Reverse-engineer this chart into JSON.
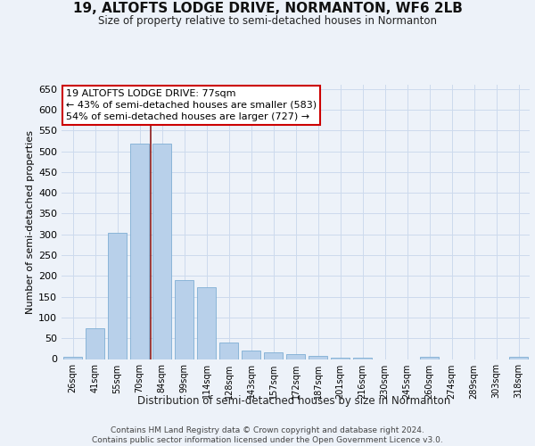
{
  "title1": "19, ALTOFTS LODGE DRIVE, NORMANTON, WF6 2LB",
  "title2": "Size of property relative to semi-detached houses in Normanton",
  "xlabel": "Distribution of semi-detached houses by size in Normanton",
  "ylabel": "Number of semi-detached properties",
  "categories": [
    "26sqm",
    "41sqm",
    "55sqm",
    "70sqm",
    "84sqm",
    "99sqm",
    "114sqm",
    "128sqm",
    "143sqm",
    "157sqm",
    "172sqm",
    "187sqm",
    "201sqm",
    "216sqm",
    "230sqm",
    "245sqm",
    "260sqm",
    "274sqm",
    "289sqm",
    "303sqm",
    "318sqm"
  ],
  "values": [
    5,
    74,
    303,
    519,
    519,
    190,
    172,
    40,
    20,
    17,
    12,
    8,
    4,
    4,
    0,
    0,
    5,
    0,
    0,
    0,
    5
  ],
  "bar_color": "#b8d0ea",
  "bar_edge_color": "#7faed4",
  "grid_color": "#ccdaed",
  "vline_x": 3.5,
  "vline_color": "#8b1a1a",
  "annotation_text": "19 ALTOFTS LODGE DRIVE: 77sqm\n← 43% of semi-detached houses are smaller (583)\n54% of semi-detached houses are larger (727) →",
  "annotation_box_color": "#ffffff",
  "annotation_box_edge": "#cc0000",
  "ylim": [
    0,
    660
  ],
  "yticks": [
    0,
    50,
    100,
    150,
    200,
    250,
    300,
    350,
    400,
    450,
    500,
    550,
    600,
    650
  ],
  "footer": "Contains HM Land Registry data © Crown copyright and database right 2024.\nContains public sector information licensed under the Open Government Licence v3.0.",
  "bg_color": "#edf2f9",
  "plot_bg_color": "#edf2f9"
}
